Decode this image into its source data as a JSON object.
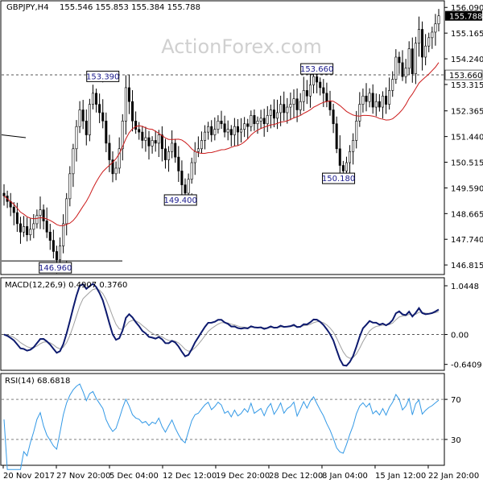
{
  "header": {
    "symbol": "GBPJPY,H4",
    "ohlc": "155.546 155.853 155.384 155.788"
  },
  "watermark": "ActionForex.com",
  "colors": {
    "candle": "#000000",
    "ma": "#cc1b1b",
    "macd": "#0d1a6e",
    "macd_signal": "#a0a0a0",
    "rsi": "#3399e6",
    "grid_dashed": "#808080",
    "border": "#000000",
    "price_tag_bg": "#000000",
    "price_tag_text": "#ffffff"
  },
  "chart_data": [
    {
      "type": "candlestick",
      "panel": "price",
      "ylim": [
        146.5,
        156.3
      ],
      "yticks": [
        "156.090",
        "155.165",
        "154.240",
        "153.315",
        "152.365",
        "151.440",
        "150.515",
        "149.590",
        "148.665",
        "147.740",
        "146.815"
      ],
      "current_price": "155.788",
      "hline_level": "153.660",
      "xticks": [
        "20 Nov 2017",
        "27 Nov 20:00",
        "5 Dec 04:00",
        "12 Dec 12:00",
        "19 Dec 20:00",
        "28 Dec 12:00",
        "8 Jan 04:00",
        "15 Jan 12:00",
        "22 Jan 20:00"
      ],
      "annotations": [
        {
          "text": "153.390",
          "bar": 30,
          "value": 153.39
        },
        {
          "text": "149.400",
          "bar": 57,
          "value": 149.4
        },
        {
          "text": "153.660",
          "bar": 95,
          "value": 153.66
        },
        {
          "text": "150.180",
          "bar": 105,
          "value": 150.18
        },
        {
          "text": "146.960",
          "bar": 19,
          "value": 146.96
        }
      ],
      "closes": [
        149.3,
        149.1,
        148.9,
        148.7,
        148.3,
        148.0,
        148.2,
        147.9,
        148.1,
        148.3,
        148.6,
        148.8,
        148.4,
        148.0,
        147.7,
        147.3,
        147.0,
        147.5,
        148.3,
        149.2,
        150.1,
        151.0,
        151.8,
        152.4,
        152.0,
        151.5,
        152.6,
        153.0,
        152.6,
        152.3,
        152.0,
        151.2,
        150.6,
        150.1,
        150.3,
        151.0,
        152.0,
        153.2,
        152.7,
        152.0,
        151.7,
        151.6,
        151.3,
        151.4,
        151.1,
        151.3,
        151.2,
        151.5,
        151.0,
        150.6,
        150.9,
        151.2,
        150.7,
        150.2,
        149.7,
        149.4,
        149.9,
        150.5,
        150.9,
        151.0,
        151.3,
        151.6,
        151.8,
        151.5,
        151.7,
        152.0,
        151.9,
        151.6,
        151.7,
        151.5,
        151.8,
        151.6,
        151.7,
        151.9,
        151.8,
        152.2,
        151.9,
        152.0,
        152.1,
        151.9,
        152.2,
        152.4,
        152.1,
        152.3,
        152.6,
        152.3,
        152.5,
        152.6,
        152.8,
        152.4,
        152.7,
        153.1,
        152.9,
        153.3,
        153.6,
        153.4,
        153.2,
        153.0,
        152.7,
        152.4,
        151.9,
        151.0,
        150.4,
        150.2,
        150.5,
        150.9,
        151.3,
        152.0,
        152.6,
        152.9,
        152.7,
        153.0,
        152.5,
        152.7,
        152.5,
        152.9,
        152.6,
        153.1,
        153.5,
        154.3,
        154.1,
        153.6,
        153.9,
        154.6,
        153.7,
        154.8,
        155.3,
        154.3,
        154.7,
        155.0,
        155.2,
        155.5,
        155.788
      ],
      "ma_period": 20
    },
    {
      "type": "line",
      "panel": "macd",
      "title": "MACD(12,26,9)",
      "main_value": "0.4907",
      "signal_value": "0.3760",
      "ylim": [
        -0.75,
        1.2
      ],
      "yticks": [
        "1.0448",
        "0.00",
        "-0.6409"
      ]
    },
    {
      "type": "line",
      "panel": "rsi",
      "title": "RSI(14)",
      "value": "68.6818",
      "ylim": [
        5,
        95
      ],
      "yticks": [
        "70",
        "30"
      ],
      "levels": [
        70,
        30
      ]
    }
  ]
}
